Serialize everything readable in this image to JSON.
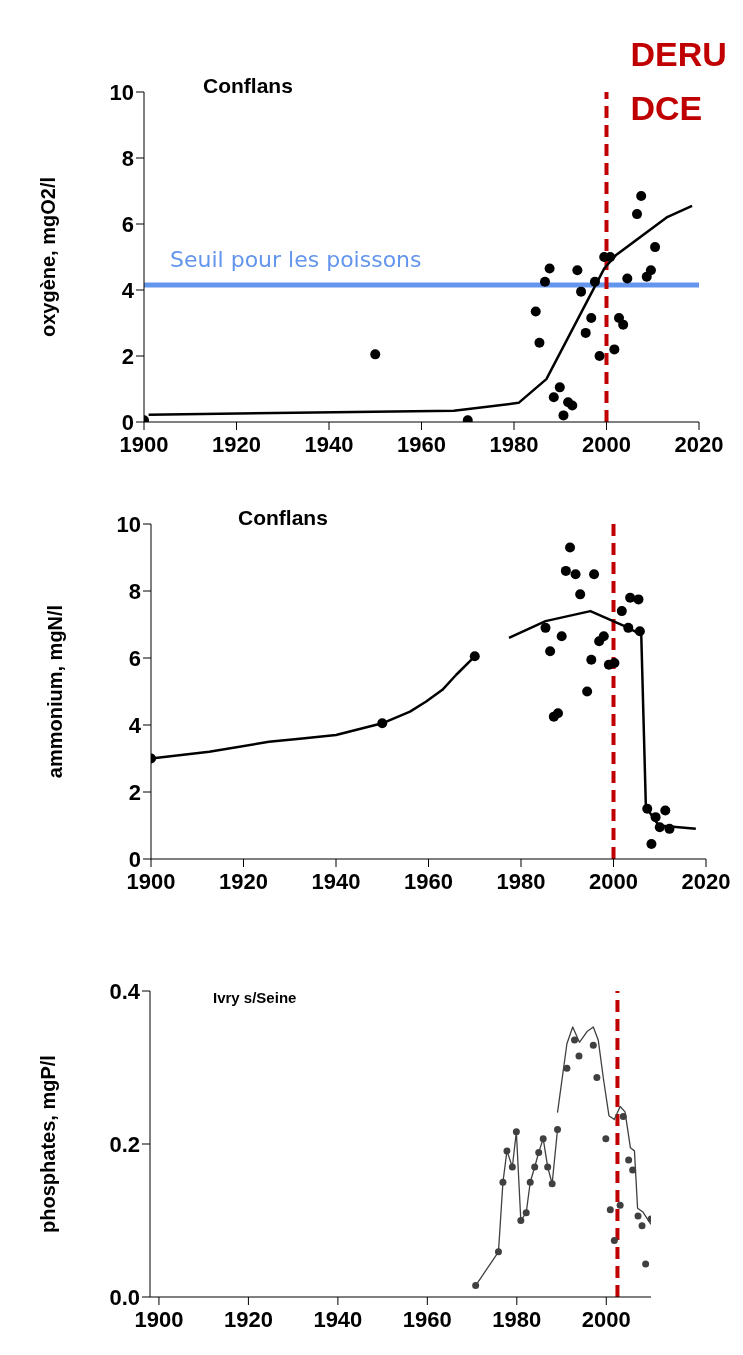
{
  "chart_data": [
    {
      "type": "scatter",
      "title": "Conflans",
      "ylabel": "oxygène, mgO2/l",
      "xlim": [
        1900,
        2020
      ],
      "xticks": [
        1900,
        1920,
        1940,
        1960,
        1980,
        2000,
        2020
      ],
      "ylim": [
        0,
        10
      ],
      "yticks": [
        0,
        2,
        4,
        6,
        8,
        10
      ],
      "series": [
        {
          "type": "line",
          "color": "#000000",
          "marker": "none",
          "x": [
            1901,
            1967,
            1981,
            1987,
            1999.5,
            2002,
            2013,
            2018.5
          ],
          "values": [
            0.22,
            0.34,
            0.58,
            1.3,
            4.65,
            5.05,
            6.2,
            6.55
          ]
        },
        {
          "type": "scatter",
          "color": "#000000",
          "marker": "circle",
          "x": [
            1900,
            1950,
            1970,
            1984.7,
            1985.5,
            1986.7,
            1987.7,
            1988.6,
            1989.9,
            1990.7,
            1991.7,
            1992.6,
            1993.7,
            1994.5,
            1995.5,
            1996.7,
            1997.5,
            1998.5,
            1999.5,
            2000.8,
            2001.7,
            2002.7,
            2003.6,
            2004.5,
            2006.6,
            2007.5,
            2008.7,
            2009.6,
            2010.5
          ],
          "values": [
            0.05,
            2.05,
            0.05,
            3.35,
            2.4,
            4.25,
            4.65,
            0.75,
            1.05,
            0.2,
            0.6,
            0.5,
            4.6,
            3.95,
            2.7,
            3.15,
            4.25,
            2.0,
            5.0,
            5.0,
            2.2,
            3.15,
            2.95,
            4.35,
            6.3,
            6.85,
            4.4,
            4.6,
            5.3
          ]
        }
      ],
      "ref_lines": [
        {
          "axis": "y",
          "value": 4.15,
          "label": "Seuil pour les poissons",
          "color": "#6495ed",
          "line_style": "solid"
        },
        {
          "axis": "x",
          "value": 2000,
          "label": "DERU DCE",
          "color": "#c00000",
          "line_style": "dashed"
        }
      ]
    },
    {
      "type": "scatter",
      "title": "Conflans",
      "ylabel": "ammonium, mgN/l",
      "xlim": [
        1900,
        2020
      ],
      "xticks": [
        1900,
        1920,
        1940,
        1960,
        1980,
        2000,
        2020
      ],
      "ylim": [
        0,
        10
      ],
      "yticks": [
        0,
        2,
        4,
        6,
        8,
        10
      ],
      "series": [
        {
          "type": "line",
          "color": "#000000",
          "marker": "none",
          "x": [
            1900,
            1912.6,
            1925.5,
            1932.7,
            1940,
            1950,
            1956,
            1959.5,
            1963,
            1966,
            1970
          ],
          "values": [
            3.0,
            3.2,
            3.5,
            3.6,
            3.7,
            4.05,
            4.4,
            4.7,
            5.05,
            5.5,
            6.05
          ]
        },
        {
          "type": "line",
          "color": "#000000",
          "marker": "none",
          "x": [
            1977.4,
            1985.3,
            1995,
            2002.4,
            2006,
            2007,
            2009.8,
            2017.8
          ],
          "values": [
            6.6,
            7.1,
            7.4,
            6.95,
            6.7,
            1.55,
            1.0,
            0.9
          ]
        },
        {
          "type": "scatter",
          "color": "#000000",
          "marker": "circle",
          "x": [
            1900,
            1950,
            1970,
            1985.3,
            1986.3,
            1987.1,
            1988,
            1988.8,
            1989.7,
            1990.6,
            1991.8,
            1992.8,
            1994.3,
            1995.2,
            1995.8,
            1996.9,
            1997.9,
            1999,
            2000.2,
            2001.8,
            2003.2,
            2003.6,
            2005.4,
            2005.7,
            2007.3,
            2008.2,
            2009.1,
            2010,
            2011.2,
            2012.1
          ],
          "values": [
            3.0,
            4.05,
            6.05,
            6.9,
            6.2,
            4.25,
            4.35,
            6.65,
            8.6,
            9.3,
            8.5,
            7.9,
            5.0,
            5.95,
            8.5,
            6.5,
            6.65,
            5.8,
            5.85,
            7.4,
            6.9,
            7.8,
            7.75,
            6.8,
            1.5,
            0.45,
            1.25,
            0.95,
            1.45,
            0.9
          ]
        }
      ],
      "ref_lines": [
        {
          "axis": "x",
          "value": 2000,
          "color": "#c00000",
          "line_style": "dashed"
        }
      ]
    },
    {
      "type": "scatter",
      "title": "Ivry s/Seine",
      "ylabel": "phosphates, mgP/l",
      "xlim": [
        1898,
        2010
      ],
      "xticks": [
        1900,
        1920,
        1940,
        1960,
        1980,
        2000
      ],
      "ylim": [
        0,
        0.4
      ],
      "yticks": [
        {
          "value": 0,
          "label": "0.0"
        },
        {
          "value": 0.2,
          "label": "0.2"
        },
        {
          "value": 0.4,
          "label": "0.4"
        }
      ],
      "series": [
        {
          "type": "line",
          "color": "#404040",
          "marker": "none",
          "x": [
            1970.8,
            1975.9,
            1976.9,
            1977.8,
            1979,
            1979.9,
            1980.9,
            1982.1,
            1983,
            1984,
            1984.9,
            1985.9,
            1986.9,
            1987.9,
            1989.1
          ],
          "values": [
            0.015,
            0.059,
            0.15,
            0.191,
            0.17,
            0.216,
            0.1,
            0.11,
            0.15,
            0.17,
            0.189,
            0.207,
            0.17,
            0.148,
            0.219
          ]
        },
        {
          "type": "line",
          "color": "#404040",
          "marker": "none",
          "x": [
            1989.1,
            1991.2,
            1992.5,
            1994,
            1995.7,
            1997.1,
            1998.2,
            1999.4,
            2000.6,
            2001.8,
            2003.1,
            2004.2,
            2005.4,
            2006.3,
            2007,
            2008.2,
            2010
          ],
          "values": [
            0.241,
            0.331,
            0.353,
            0.333,
            0.347,
            0.353,
            0.336,
            0.284,
            0.237,
            0.232,
            0.249,
            0.242,
            0.195,
            0.191,
            0.116,
            0.111,
            0.095
          ]
        },
        {
          "type": "scatter",
          "color": "#404040",
          "marker": "circle",
          "x": [
            1970.8,
            1975.9,
            1976.9,
            1977.8,
            1979,
            1979.9,
            1980.9,
            1982.1,
            1983,
            1984,
            1984.9,
            1985.9,
            1986.9,
            1987.9,
            1989.1,
            1991.2,
            1992.9,
            1993.9,
            1997.1,
            1997.9,
            1999.9,
            2000.9,
            2001.8,
            2003.1,
            2003.8,
            2005,
            2005.9,
            2007.1,
            2008,
            2008.8,
            2010
          ],
          "values": [
            0.015,
            0.059,
            0.15,
            0.191,
            0.17,
            0.216,
            0.1,
            0.11,
            0.15,
            0.17,
            0.189,
            0.207,
            0.17,
            0.148,
            0.219,
            0.299,
            0.336,
            0.315,
            0.329,
            0.287,
            0.207,
            0.114,
            0.074,
            0.12,
            0.236,
            0.179,
            0.166,
            0.106,
            0.093,
            0.043,
            0.102
          ]
        }
      ],
      "ref_lines": [
        {
          "axis": "x",
          "value": 2002.5,
          "color": "#c00000",
          "line_style": "dashed"
        }
      ]
    }
  ]
}
